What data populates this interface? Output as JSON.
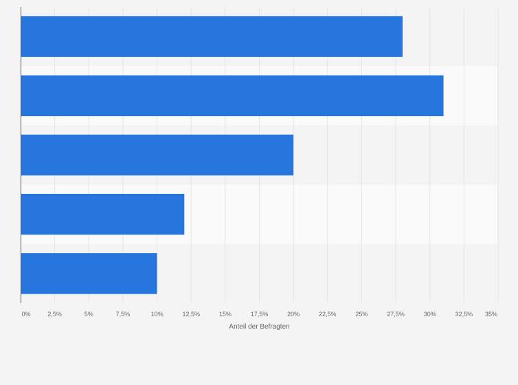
{
  "chart_data": {
    "type": "bar",
    "orientation": "horizontal",
    "categories": [
      "",
      "",
      "",
      "",
      ""
    ],
    "values": [
      28,
      31,
      20,
      12,
      10
    ],
    "xlabel": "Anteil der Befragten",
    "ylabel": "",
    "xlim": [
      0,
      35
    ],
    "x_ticks": [
      "0%",
      "2,5%",
      "5%",
      "7,5%",
      "10%",
      "12,5%",
      "15%",
      "17,5%",
      "20%",
      "22,5%",
      "25%",
      "27,5%",
      "30%",
      "32,5%",
      "35%"
    ],
    "grid": true,
    "legend": "none",
    "colors": {
      "bar": "#2776dd",
      "band_light": "#fafafa",
      "band_dark": "#f4f4f4",
      "grid": "#e4e4e4",
      "axis": "#555555",
      "text": "#666666"
    }
  }
}
